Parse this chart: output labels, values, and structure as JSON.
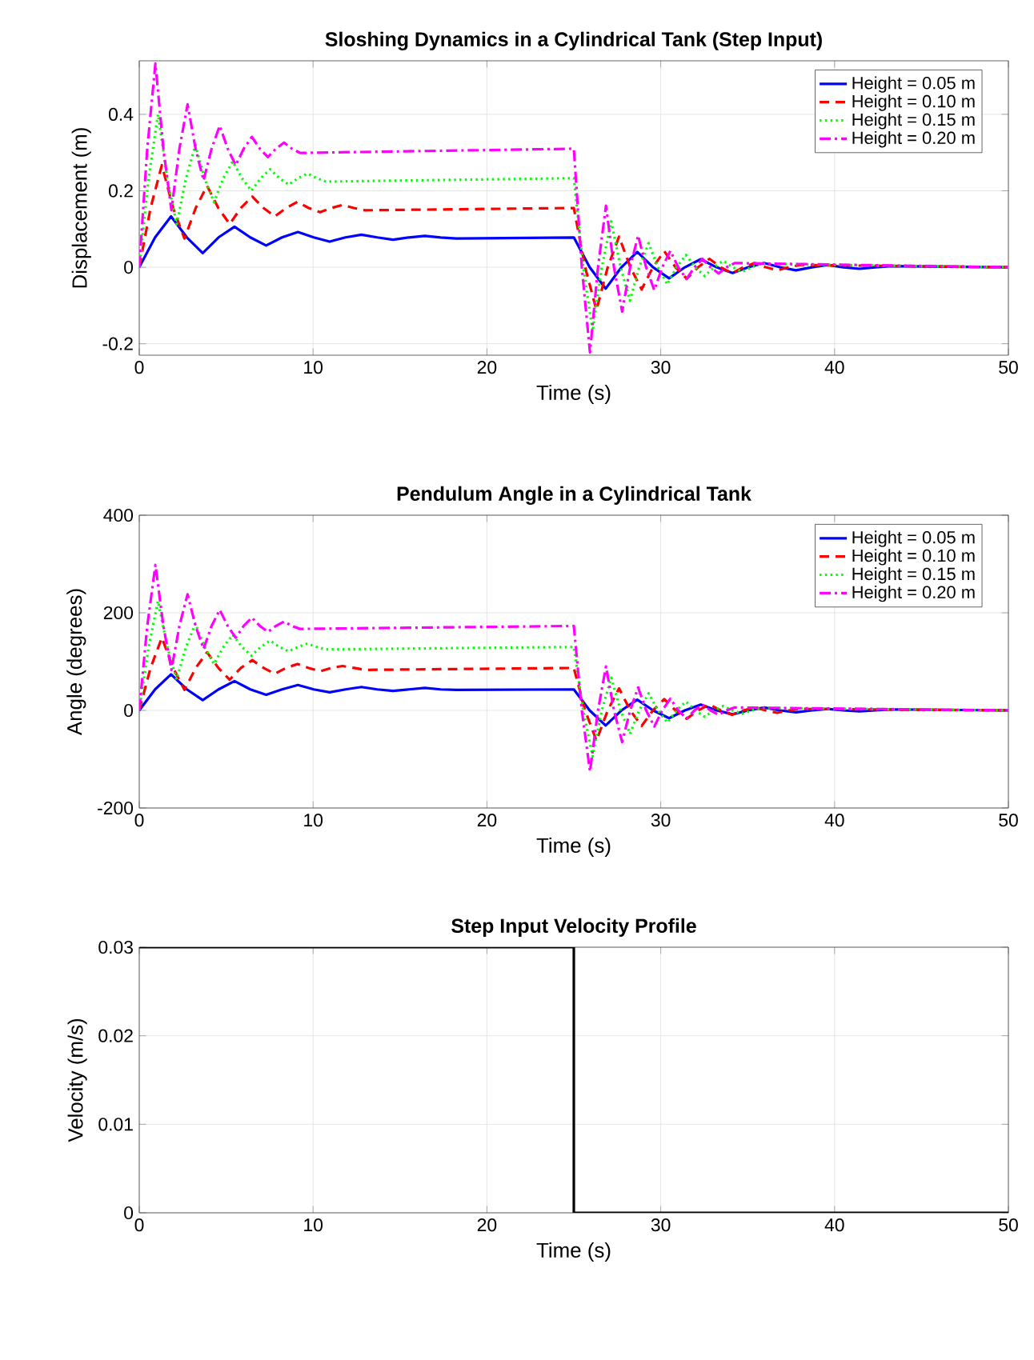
{
  "chart_data": [
    {
      "type": "line",
      "title": "Sloshing Dynamics in a Cylindrical Tank (Step Input)",
      "xlabel": "Time (s)",
      "ylabel": "Displacement (m)",
      "xlim": [
        0,
        50
      ],
      "xticks": [
        0,
        10,
        20,
        30,
        40,
        50
      ],
      "ylim": [
        -0.23,
        0.54
      ],
      "yticks": [
        -0.2,
        0,
        0.2,
        0.4
      ],
      "grid": true,
      "legend": "top right",
      "series": [
        {
          "name": "Height = 0.05 m",
          "color": "#0000ff",
          "line_style": "solid",
          "x": [
            0,
            0.91,
            1.83,
            2.74,
            3.65,
            4.56,
            5.48,
            6.39,
            7.3,
            8.21,
            9.13,
            10.04,
            10.95,
            11.86,
            12.78,
            13.69,
            14.6,
            15.51,
            16.43,
            17.34,
            18.25,
            25,
            25.91,
            26.83,
            27.74,
            28.65,
            29.56,
            30.48,
            31.39,
            32.3,
            33.21,
            34.13,
            35.04,
            35.95,
            36.86,
            37.78,
            38.69,
            39.6,
            40.51,
            41.43,
            42.34,
            43.25,
            50
          ],
          "values": [
            0,
            0.078,
            0.133,
            0.078,
            0.037,
            0.078,
            0.106,
            0.078,
            0.057,
            0.078,
            0.092,
            0.078,
            0.067,
            0.078,
            0.085,
            0.078,
            0.072,
            0.078,
            0.082,
            0.078,
            0.075,
            0.078,
            0,
            -0.056,
            0,
            0.04,
            0,
            -0.029,
            0,
            0.021,
            0,
            -0.015,
            0,
            0.011,
            0,
            -0.008,
            0,
            0.006,
            0,
            -0.004,
            0,
            0.003,
            0
          ]
        },
        {
          "name": "Height = 0.10 m",
          "color": "#ff0000",
          "line_style": "dashed",
          "x": [
            0,
            0.65,
            1.3,
            1.95,
            2.6,
            3.25,
            3.9,
            4.55,
            5.2,
            5.85,
            6.5,
            7.15,
            7.8,
            8.45,
            9.1,
            9.75,
            10.4,
            11.05,
            11.7,
            12.35,
            13,
            25,
            25.65,
            26.3,
            26.95,
            27.6,
            28.25,
            28.9,
            29.55,
            30.2,
            30.85,
            31.5,
            32.15,
            32.8,
            33.45,
            34.1,
            34.75,
            35.4,
            36.05,
            36.7,
            37.35,
            38,
            50
          ],
          "values": [
            0,
            0.155,
            0.267,
            0.155,
            0.075,
            0.155,
            0.213,
            0.155,
            0.113,
            0.155,
            0.185,
            0.155,
            0.133,
            0.155,
            0.171,
            0.155,
            0.144,
            0.155,
            0.163,
            0.155,
            0.149,
            0.155,
            0,
            -0.112,
            0,
            0.08,
            0,
            -0.058,
            0,
            0.042,
            0,
            -0.03,
            0,
            0.022,
            0,
            -0.016,
            0,
            0.011,
            0,
            -0.008,
            0,
            0.006,
            0
          ]
        },
        {
          "name": "Height = 0.15 m",
          "color": "#00ff00",
          "line_style": "dotted",
          "x": [
            0,
            0.54,
            1.08,
            1.61,
            2.15,
            2.69,
            3.23,
            3.76,
            4.3,
            4.84,
            5.38,
            5.91,
            6.45,
            6.99,
            7.53,
            8.06,
            8.6,
            9.14,
            9.68,
            10.21,
            10.75,
            25,
            25.54,
            26.08,
            26.61,
            27.15,
            27.69,
            28.23,
            28.76,
            29.3,
            29.84,
            30.38,
            30.91,
            31.45,
            31.99,
            32.53,
            33.06,
            33.6,
            34.14,
            34.68,
            35.21,
            35.75,
            50
          ],
          "values": [
            0,
            0.233,
            0.4,
            0.233,
            0.112,
            0.233,
            0.319,
            0.233,
            0.17,
            0.233,
            0.277,
            0.233,
            0.2,
            0.233,
            0.256,
            0.233,
            0.216,
            0.233,
            0.245,
            0.233,
            0.224,
            0.233,
            0,
            -0.167,
            0,
            0.12,
            0,
            -0.087,
            0,
            0.063,
            0,
            -0.045,
            0,
            0.032,
            0,
            -0.023,
            0,
            0.017,
            0,
            -0.012,
            0,
            0.009,
            0
          ]
        },
        {
          "name": "Height = 0.20 m",
          "color": "#ff00ff",
          "line_style": "dashdot",
          "x": [
            0,
            0.46,
            0.93,
            1.39,
            1.85,
            2.31,
            2.78,
            3.24,
            3.7,
            4.16,
            4.63,
            5.09,
            5.55,
            6.01,
            6.48,
            6.94,
            7.4,
            7.86,
            8.33,
            8.79,
            9.25,
            25,
            25.46,
            25.93,
            26.39,
            26.85,
            27.31,
            27.78,
            28.24,
            28.7,
            29.16,
            29.63,
            30.09,
            30.55,
            31.01,
            31.48,
            31.94,
            32.4,
            32.86,
            33.33,
            33.79,
            34.25,
            50
          ],
          "values": [
            0,
            0.31,
            0.533,
            0.31,
            0.149,
            0.31,
            0.426,
            0.31,
            0.227,
            0.31,
            0.37,
            0.31,
            0.267,
            0.31,
            0.341,
            0.31,
            0.288,
            0.31,
            0.326,
            0.31,
            0.299,
            0.31,
            0,
            -0.223,
            0,
            0.161,
            0,
            -0.116,
            0,
            0.083,
            0,
            -0.06,
            0,
            0.043,
            0,
            -0.031,
            0,
            0.022,
            0,
            -0.016,
            0,
            0.011,
            0
          ]
        }
      ]
    },
    {
      "type": "line",
      "title": "Pendulum Angle in a Cylindrical Tank",
      "xlabel": "Time (s)",
      "ylabel": "Angle (degrees)",
      "xlim": [
        0,
        50
      ],
      "xticks": [
        0,
        10,
        20,
        30,
        40,
        50
      ],
      "ylim": [
        -200,
        400
      ],
      "yticks": [
        -200,
        0,
        200,
        400
      ],
      "grid": true,
      "legend": "top right",
      "series": [
        {
          "name": "Height = 0.05 m",
          "color": "#0000ff",
          "line_style": "solid",
          "x": [
            0,
            0.91,
            1.83,
            2.74,
            3.65,
            4.56,
            5.48,
            6.39,
            7.3,
            8.21,
            9.13,
            10.04,
            10.95,
            11.86,
            12.78,
            13.69,
            14.6,
            15.51,
            16.43,
            17.34,
            18.25,
            25,
            25.91,
            26.83,
            27.74,
            28.65,
            29.56,
            30.48,
            31.39,
            32.3,
            33.21,
            34.13,
            35.04,
            35.95,
            36.86,
            37.78,
            38.69,
            39.6,
            40.51,
            41.43,
            42.34,
            43.25,
            50
          ],
          "values": [
            0,
            43,
            74,
            43,
            21,
            43,
            60,
            43,
            32,
            43,
            52,
            43,
            37,
            43,
            48,
            43,
            40,
            43,
            46,
            43,
            42,
            43,
            0,
            -31,
            0,
            22,
            0,
            -16,
            0,
            12,
            0,
            -8,
            0,
            6,
            0,
            -4,
            0,
            3,
            0,
            -2,
            0,
            2,
            0
          ]
        },
        {
          "name": "Height = 0.10 m",
          "color": "#ff0000",
          "line_style": "dashed",
          "x": [
            0,
            0.65,
            1.3,
            1.95,
            2.6,
            3.25,
            3.9,
            4.55,
            5.2,
            5.85,
            6.5,
            7.15,
            7.8,
            8.45,
            9.1,
            9.75,
            10.4,
            11.05,
            11.7,
            12.35,
            13,
            25,
            25.65,
            26.3,
            26.95,
            27.6,
            28.25,
            28.9,
            29.55,
            30.2,
            30.85,
            31.5,
            32.15,
            32.8,
            33.45,
            34.1,
            34.75,
            35.4,
            36.05,
            36.7,
            37.35,
            38,
            50
          ],
          "values": [
            0,
            87,
            149,
            87,
            42,
            87,
            119,
            87,
            63,
            87,
            103,
            87,
            75,
            87,
            95,
            87,
            80,
            87,
            91,
            87,
            83,
            87,
            0,
            -62,
            0,
            45,
            0,
            -32,
            0,
            23,
            0,
            -17,
            0,
            12,
            0,
            -9,
            0,
            6,
            0,
            -5,
            0,
            3,
            0
          ]
        },
        {
          "name": "Height = 0.15 m",
          "color": "#00ff00",
          "line_style": "dotted",
          "x": [
            0,
            0.54,
            1.08,
            1.61,
            2.15,
            2.69,
            3.23,
            3.76,
            4.3,
            4.84,
            5.38,
            5.91,
            6.45,
            6.99,
            7.53,
            8.06,
            8.6,
            9.14,
            9.68,
            10.21,
            10.75,
            25,
            25.54,
            26.08,
            26.61,
            27.15,
            27.69,
            28.23,
            28.76,
            29.3,
            29.84,
            30.38,
            30.91,
            31.45,
            31.99,
            32.53,
            33.06,
            33.6,
            34.14,
            34.68,
            35.21,
            35.75,
            50
          ],
          "values": [
            0,
            130,
            224,
            130,
            63,
            130,
            178,
            130,
            95,
            130,
            155,
            130,
            112,
            130,
            143,
            130,
            121,
            130,
            137,
            130,
            125,
            130,
            0,
            -94,
            0,
            67,
            0,
            -48,
            0,
            35,
            0,
            -25,
            0,
            18,
            0,
            -13,
            0,
            9,
            0,
            -7,
            0,
            5,
            0
          ]
        },
        {
          "name": "Height = 0.20 m",
          "color": "#ff00ff",
          "line_style": "dashdot",
          "x": [
            0,
            0.46,
            0.93,
            1.39,
            1.85,
            2.31,
            2.78,
            3.24,
            3.7,
            4.16,
            4.63,
            5.09,
            5.55,
            6.01,
            6.48,
            6.94,
            7.4,
            7.86,
            8.33,
            8.79,
            9.25,
            25,
            25.46,
            25.93,
            26.39,
            26.85,
            27.31,
            27.78,
            28.24,
            28.7,
            29.16,
            29.63,
            30.09,
            30.55,
            31.01,
            31.48,
            31.94,
            32.4,
            32.86,
            33.33,
            33.79,
            34.25,
            50
          ],
          "values": [
            0,
            173,
            298,
            173,
            83,
            173,
            238,
            173,
            126,
            173,
            206,
            173,
            149,
            173,
            190,
            173,
            161,
            173,
            182,
            173,
            167,
            173,
            0,
            -125,
            0,
            90,
            0,
            -65,
            0,
            47,
            0,
            -33,
            0,
            24,
            0,
            -17,
            0,
            12,
            0,
            -9,
            0,
            6,
            0
          ]
        }
      ]
    },
    {
      "type": "line",
      "title": "Step Input Velocity Profile",
      "xlabel": "Time (s)",
      "ylabel": "Velocity (m/s)",
      "xlim": [
        0,
        50
      ],
      "xticks": [
        0,
        10,
        20,
        30,
        40,
        50
      ],
      "ylim": [
        0,
        0.03
      ],
      "yticks": [
        0,
        0.01,
        0.02,
        0.03
      ],
      "grid": true,
      "series": [
        {
          "color": "#000000",
          "line_style": "solid",
          "x": [
            0,
            25,
            25,
            50
          ],
          "values": [
            0.03,
            0.03,
            0,
            0
          ]
        }
      ]
    }
  ]
}
